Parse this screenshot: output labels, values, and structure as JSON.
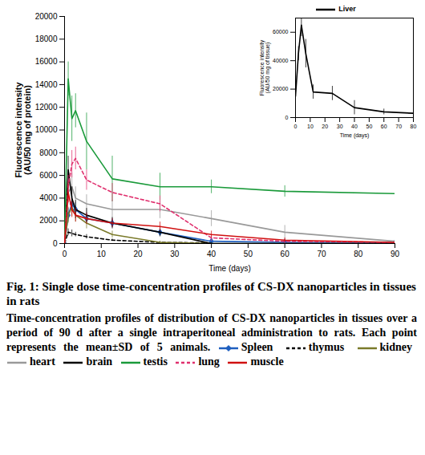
{
  "chart_data": [
    {
      "type": "line",
      "title": "Fig. 1: Single dose time-concentration profiles of CS-DX nanoparticles in tissues in rats",
      "caption": "Time-concentration profiles of distribution of CS-DX nanoparticles in tissues over a period of 90 d after a single intraperitoneal administration to rats. Each point represents the mean±SD of 5 animals.",
      "x_label": "Time (days)",
      "y_label": "Fluorescence intensity (AU/50 mg of protein)",
      "x": [
        0,
        1,
        2,
        3,
        6,
        13,
        26,
        40,
        60,
        90
      ],
      "xlim": [
        0,
        90
      ],
      "xticks": [
        0,
        10,
        20,
        30,
        40,
        50,
        60,
        70,
        80,
        90
      ],
      "ylim": [
        0,
        20000
      ],
      "yticks": [
        0,
        2000,
        4000,
        6000,
        8000,
        10000,
        12000,
        14000,
        16000,
        18000,
        20000
      ],
      "series": [
        {
          "name": "Spleen",
          "color": "#1f5fbf",
          "line_style": "solid",
          "marker": "diamond",
          "values": [
            0,
            2500,
            3500,
            3000,
            2200,
            1800,
            1000,
            200,
            100,
            50
          ],
          "errors": [
            0,
            600,
            700,
            600,
            500,
            400,
            300,
            100,
            100,
            50
          ]
        },
        {
          "name": "thymus",
          "color": "#000000",
          "line_style": "dashed",
          "values": [
            0,
            1000,
            900,
            800,
            600,
            300,
            100,
            50,
            null,
            null
          ],
          "errors": [
            0,
            300,
            300,
            200,
            200,
            100,
            100,
            50,
            null,
            null
          ]
        },
        {
          "name": "kidney",
          "color": "#7a7a2a",
          "line_style": "solid",
          "values": [
            0,
            2500,
            3200,
            2500,
            1800,
            800,
            100,
            0,
            0,
            0
          ],
          "errors": [
            0,
            700,
            800,
            600,
            500,
            300,
            100,
            0,
            0,
            0
          ]
        },
        {
          "name": "heart",
          "color": "#999999",
          "line_style": "solid",
          "values": [
            0,
            4500,
            5000,
            4000,
            3500,
            3000,
            3000,
            2200,
            1000,
            200
          ],
          "errors": [
            0,
            1000,
            1200,
            1000,
            800,
            800,
            800,
            700,
            600,
            200
          ]
        },
        {
          "name": "brain",
          "color": "#000000",
          "line_style": "solid",
          "values": [
            0,
            6500,
            4000,
            3000,
            2500,
            1800,
            1000,
            0,
            0,
            0
          ],
          "errors": [
            0,
            1200,
            1000,
            800,
            600,
            500,
            400,
            0,
            0,
            0
          ]
        },
        {
          "name": "testis",
          "color": "#1a9a3a",
          "line_style": "solid",
          "values": [
            0,
            14500,
            11000,
            11700,
            9000,
            5700,
            5000,
            5000,
            4600,
            4400
          ],
          "errors": [
            0,
            1500,
            2000,
            1500,
            2500,
            2000,
            1200,
            600,
            500,
            900
          ]
        },
        {
          "name": "lung",
          "color": "#e0306e",
          "line_style": "dashed",
          "values": [
            0,
            5000,
            7000,
            7500,
            5600,
            4500,
            3500,
            500,
            200,
            100
          ],
          "errors": [
            0,
            1000,
            1200,
            1000,
            900,
            800,
            700,
            300,
            200,
            100
          ]
        },
        {
          "name": "muscle",
          "color": "#d01010",
          "line_style": "solid",
          "values": [
            0,
            4500,
            3000,
            2500,
            2200,
            1800,
            1500,
            800,
            300,
            100
          ],
          "errors": [
            0,
            900,
            700,
            600,
            500,
            400,
            400,
            300,
            200,
            100
          ]
        }
      ]
    },
    {
      "type": "line",
      "x_label": "Time (days)",
      "y_label": "Fluorescence intensity (AU/50 mg of tissue)",
      "x": [
        0,
        2,
        4,
        7,
        12,
        25,
        40,
        60,
        80
      ],
      "xlim": [
        0,
        80
      ],
      "xticks": [
        0,
        10,
        20,
        30,
        40,
        50,
        60,
        70,
        80
      ],
      "ylim": [
        0,
        70000
      ],
      "yticks": [
        0,
        20000,
        40000,
        60000
      ],
      "series": [
        {
          "name": "Liver",
          "color": "#000000",
          "line_style": "solid",
          "values": [
            15000,
            45000,
            65000,
            45000,
            18000,
            17000,
            7000,
            4000,
            3000
          ],
          "errors": [
            2000,
            5000,
            8000,
            10000,
            5000,
            5000,
            5000,
            2000,
            2000
          ]
        }
      ]
    }
  ]
}
